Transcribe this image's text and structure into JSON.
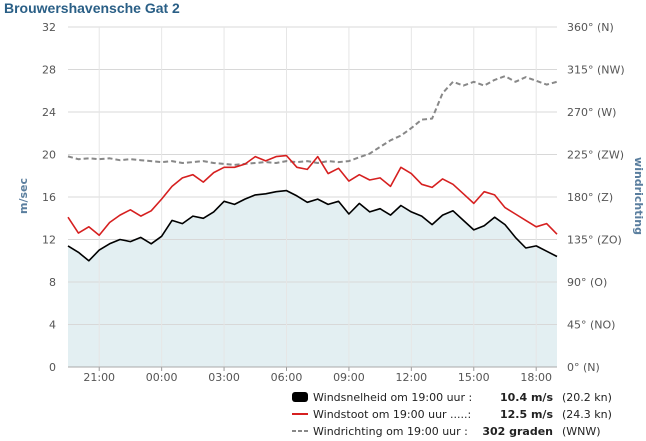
{
  "chart_data": {
    "type": "line",
    "title": "Brouwershavensche Gat 2",
    "ylabel_left": "m/sec",
    "ylabel_right": "windrichting",
    "ylim_left": [
      0,
      32
    ],
    "yticks_left": [
      "0",
      "4",
      "8",
      "12",
      "16",
      "20",
      "24",
      "28",
      "32"
    ],
    "ylim_right": [
      0,
      360
    ],
    "yticks_right": [
      "0° (N)",
      "45° (NO)",
      "90° (O)",
      "135° (ZO)",
      "180° (Z)",
      "225° (ZW)",
      "270° (W)",
      "315° (NW)",
      "360° (N)"
    ],
    "xlim": [
      -4.5,
      19.0
    ],
    "xticks": [
      {
        "x": -3,
        "label": "21:00"
      },
      {
        "x": 0,
        "label": "00:00"
      },
      {
        "x": 3,
        "label": "03:00"
      },
      {
        "x": 6,
        "label": "06:00"
      },
      {
        "x": 9,
        "label": "09:00"
      },
      {
        "x": 12,
        "label": "12:00"
      },
      {
        "x": 15,
        "label": "15:00"
      },
      {
        "x": 18,
        "label": "18:00"
      }
    ],
    "grid": true,
    "legend_position": "bottom-right",
    "series": [
      {
        "name": "Windsnelheid",
        "color": "#000000",
        "axis": "left",
        "style": "solid",
        "fill": "#e3eff2",
        "points": [
          [
            -4.5,
            11.4
          ],
          [
            -4.0,
            10.8
          ],
          [
            -3.5,
            10.0
          ],
          [
            -3.0,
            11.0
          ],
          [
            -2.5,
            11.6
          ],
          [
            -2.0,
            12.0
          ],
          [
            -1.5,
            11.8
          ],
          [
            -1.0,
            12.2
          ],
          [
            -0.5,
            11.6
          ],
          [
            0.0,
            12.3
          ],
          [
            0.5,
            13.8
          ],
          [
            1.0,
            13.5
          ],
          [
            1.5,
            14.2
          ],
          [
            2.0,
            14.0
          ],
          [
            2.5,
            14.6
          ],
          [
            3.0,
            15.6
          ],
          [
            3.5,
            15.3
          ],
          [
            4.0,
            15.8
          ],
          [
            4.5,
            16.2
          ],
          [
            5.0,
            16.3
          ],
          [
            5.5,
            16.5
          ],
          [
            6.0,
            16.6
          ],
          [
            6.5,
            16.1
          ],
          [
            7.0,
            15.5
          ],
          [
            7.5,
            15.8
          ],
          [
            8.0,
            15.3
          ],
          [
            8.5,
            15.6
          ],
          [
            9.0,
            14.4
          ],
          [
            9.5,
            15.4
          ],
          [
            10.0,
            14.6
          ],
          [
            10.5,
            14.9
          ],
          [
            11.0,
            14.3
          ],
          [
            11.5,
            15.2
          ],
          [
            12.0,
            14.6
          ],
          [
            12.5,
            14.2
          ],
          [
            13.0,
            13.4
          ],
          [
            13.5,
            14.3
          ],
          [
            14.0,
            14.7
          ],
          [
            14.5,
            13.8
          ],
          [
            15.0,
            12.9
          ],
          [
            15.5,
            13.3
          ],
          [
            16.0,
            14.1
          ],
          [
            16.5,
            13.4
          ],
          [
            17.0,
            12.2
          ],
          [
            17.5,
            11.2
          ],
          [
            18.0,
            11.4
          ],
          [
            18.5,
            10.9
          ],
          [
            19.0,
            10.4
          ]
        ]
      },
      {
        "name": "Windstoot",
        "color": "#d62020",
        "axis": "left",
        "style": "solid",
        "points": [
          [
            -4.5,
            14.1
          ],
          [
            -4.0,
            12.6
          ],
          [
            -3.5,
            13.2
          ],
          [
            -3.0,
            12.4
          ],
          [
            -2.5,
            13.6
          ],
          [
            -2.0,
            14.3
          ],
          [
            -1.5,
            14.8
          ],
          [
            -1.0,
            14.2
          ],
          [
            -0.5,
            14.7
          ],
          [
            0.0,
            15.8
          ],
          [
            0.5,
            17.0
          ],
          [
            1.0,
            17.8
          ],
          [
            1.5,
            18.1
          ],
          [
            2.0,
            17.4
          ],
          [
            2.5,
            18.3
          ],
          [
            3.0,
            18.8
          ],
          [
            3.5,
            18.8
          ],
          [
            4.0,
            19.1
          ],
          [
            4.5,
            19.8
          ],
          [
            5.0,
            19.4
          ],
          [
            5.5,
            19.8
          ],
          [
            6.0,
            19.9
          ],
          [
            6.5,
            18.8
          ],
          [
            7.0,
            18.6
          ],
          [
            7.5,
            19.8
          ],
          [
            8.0,
            18.2
          ],
          [
            8.5,
            18.7
          ],
          [
            9.0,
            17.5
          ],
          [
            9.5,
            18.1
          ],
          [
            10.0,
            17.6
          ],
          [
            10.5,
            17.8
          ],
          [
            11.0,
            17.0
          ],
          [
            11.5,
            18.8
          ],
          [
            12.0,
            18.2
          ],
          [
            12.5,
            17.2
          ],
          [
            13.0,
            16.9
          ],
          [
            13.5,
            17.7
          ],
          [
            14.0,
            17.2
          ],
          [
            14.5,
            16.3
          ],
          [
            15.0,
            15.4
          ],
          [
            15.5,
            16.5
          ],
          [
            16.0,
            16.2
          ],
          [
            16.5,
            15.0
          ],
          [
            17.0,
            14.4
          ],
          [
            17.5,
            13.8
          ],
          [
            18.0,
            13.2
          ],
          [
            18.5,
            13.5
          ],
          [
            19.0,
            12.5
          ]
        ]
      },
      {
        "name": "Windrichting",
        "color": "#888888",
        "axis": "right",
        "style": "dashed",
        "points": [
          [
            -4.5,
            223
          ],
          [
            -4.0,
            220
          ],
          [
            -3.5,
            221
          ],
          [
            -3.0,
            220
          ],
          [
            -2.5,
            221
          ],
          [
            -2.0,
            219
          ],
          [
            -1.5,
            220
          ],
          [
            -1.0,
            219
          ],
          [
            -0.5,
            218
          ],
          [
            0.0,
            217
          ],
          [
            0.5,
            218
          ],
          [
            1.0,
            216
          ],
          [
            1.5,
            217
          ],
          [
            2.0,
            218
          ],
          [
            2.5,
            216
          ],
          [
            3.0,
            215
          ],
          [
            3.5,
            214
          ],
          [
            4.0,
            215
          ],
          [
            4.5,
            216
          ],
          [
            5.0,
            217
          ],
          [
            5.5,
            216
          ],
          [
            6.0,
            218
          ],
          [
            6.5,
            217
          ],
          [
            7.0,
            218
          ],
          [
            7.5,
            216
          ],
          [
            8.0,
            218
          ],
          [
            8.5,
            217
          ],
          [
            9.0,
            218
          ],
          [
            9.5,
            222
          ],
          [
            10.0,
            226
          ],
          [
            10.5,
            233
          ],
          [
            11.0,
            240
          ],
          [
            11.5,
            245
          ],
          [
            12.0,
            253
          ],
          [
            12.5,
            262
          ],
          [
            13.0,
            263
          ],
          [
            13.5,
            290
          ],
          [
            14.0,
            302
          ],
          [
            14.5,
            298
          ],
          [
            15.0,
            302
          ],
          [
            15.5,
            298
          ],
          [
            16.0,
            304
          ],
          [
            16.5,
            308
          ],
          [
            17.0,
            302
          ],
          [
            17.5,
            307
          ],
          [
            18.0,
            303
          ],
          [
            18.5,
            299
          ],
          [
            19.0,
            302
          ]
        ]
      }
    ],
    "legend": [
      {
        "label": "Windsnelheid om 19:00 uur :",
        "value": "10.4 m/s",
        "extra": "(20.2 kn)"
      },
      {
        "label": "Windstoot om 19:00 uur .....:",
        "value": "12.5 m/s",
        "extra": "(24.3 kn)"
      },
      {
        "label": "Windrichting om 19:00 uur :",
        "value": "302 graden",
        "extra": "(WNW)"
      }
    ]
  }
}
